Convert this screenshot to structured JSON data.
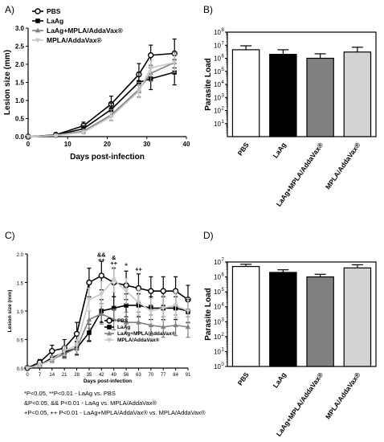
{
  "chart_data": [
    {
      "panel": "A)",
      "type": "line",
      "xlabel": "Days post-infection",
      "ylabel": "Lesion size (mm)",
      "xlim": [
        0,
        40
      ],
      "ylim": [
        0,
        3
      ],
      "xticks": [
        "0",
        "10",
        "20",
        "30",
        "40"
      ],
      "yticks": [
        "0.0",
        "0.5",
        "1.0",
        "1.5",
        "2.0",
        "2.5",
        "3.0"
      ],
      "legend_position": "top-left",
      "x": [
        0,
        7,
        14,
        21,
        28,
        31,
        37
      ],
      "series": [
        {
          "name": "PBS",
          "values": [
            0,
            0.05,
            0.3,
            0.9,
            1.72,
            2.25,
            2.3
          ],
          "err": [
            0,
            0.02,
            0.1,
            0.22,
            0.3,
            0.28,
            0.4
          ]
        },
        {
          "name": "LaAg",
          "values": [
            0,
            0.04,
            0.22,
            0.75,
            1.5,
            1.6,
            1.78
          ],
          "err": [
            0,
            0.02,
            0.08,
            0.18,
            0.28,
            0.3,
            0.35
          ]
        },
        {
          "name": "LaAg+MPLA/AddaVax®",
          "values": [
            0,
            0.04,
            0.15,
            0.6,
            1.3,
            1.75,
            2.05
          ],
          "err": [
            0,
            0.02,
            0.06,
            0.15,
            0.2,
            0.22,
            0.28
          ]
        },
        {
          "name": "MPLA/AddaVax®",
          "values": [
            0,
            0.03,
            0.12,
            0.55,
            1.25,
            1.9,
            2.05
          ],
          "err": [
            0,
            0.02,
            0.05,
            0.12,
            0.18,
            0.2,
            0.22
          ]
        }
      ]
    },
    {
      "panel": "B)",
      "type": "bar",
      "ylabel": "Parasite Load",
      "scale": "log",
      "ylim": [
        1,
        100000000
      ],
      "yticks": [
        "10",
        "1",
        "2",
        "3",
        "4",
        "5",
        "6",
        "7",
        "8"
      ],
      "categories": [
        "PBS",
        "LaAg",
        "LaAg+MPLA/AddaVax®",
        "MPLA/AddaVax®"
      ],
      "values": [
        4500000,
        2000000,
        1000000,
        3000000
      ],
      "err_upper": [
        9000000,
        4500000,
        2200000,
        7000000
      ],
      "colors": [
        "#ffffff",
        "#000000",
        "#808080",
        "#d3d3d3"
      ]
    },
    {
      "panel": "C)",
      "type": "line",
      "xlabel": "Days post-infection",
      "ylabel": "Lesion size (mm)",
      "xlim": [
        0,
        91
      ],
      "ylim": [
        0,
        2
      ],
      "xticks": [
        "0",
        "7",
        "14",
        "21",
        "28",
        "35",
        "42",
        "49",
        "56",
        "63",
        "70",
        "77",
        "84",
        "91"
      ],
      "yticks": [
        "0.0",
        "0.5",
        "1.0",
        "1.5",
        "2.0"
      ],
      "legend_position": "bottom-right",
      "x": [
        0,
        7,
        14,
        21,
        28,
        35,
        42,
        49,
        56,
        63,
        70,
        77,
        84,
        91
      ],
      "series": [
        {
          "name": "PBS",
          "values": [
            0,
            0.1,
            0.3,
            0.35,
            0.6,
            1.5,
            1.62,
            1.5,
            1.45,
            1.4,
            1.35,
            1.35,
            1.35,
            1.2
          ],
          "err": [
            0,
            0.05,
            0.1,
            0.15,
            0.2,
            0.25,
            0.25,
            0.25,
            0.25,
            0.25,
            0.25,
            0.25,
            0.25,
            0.25
          ]
        },
        {
          "name": "LaAg",
          "values": [
            0,
            0.05,
            0.18,
            0.28,
            0.35,
            0.62,
            1.0,
            1.05,
            1.1,
            1.1,
            1.05,
            1.05,
            1.05,
            1.0
          ],
          "err": [
            0,
            0.03,
            0.08,
            0.1,
            0.12,
            0.15,
            0.2,
            0.2,
            0.2,
            0.2,
            0.2,
            0.2,
            0.2,
            0.2
          ]
        },
        {
          "name": "LaAg+MPLA/AddaVax®",
          "values": [
            0,
            0.05,
            0.15,
            0.25,
            0.35,
            0.85,
            0.95,
            0.85,
            0.8,
            0.8,
            0.75,
            0.72,
            0.75,
            0.72
          ],
          "err": [
            0,
            0.03,
            0.06,
            0.08,
            0.1,
            0.15,
            0.18,
            0.18,
            0.18,
            0.18,
            0.18,
            0.18,
            0.18,
            0.18
          ]
        },
        {
          "name": "MPLA/AddaVax®",
          "values": [
            0,
            0.05,
            0.15,
            0.3,
            0.4,
            1.2,
            1.3,
            1.55,
            1.35,
            1.15,
            1.0,
            1.05,
            1.1,
            1.0
          ],
          "err": [
            0,
            0.03,
            0.06,
            0.08,
            0.1,
            0.2,
            0.22,
            0.22,
            0.22,
            0.22,
            0.22,
            0.22,
            0.22,
            0.22
          ]
        }
      ],
      "annotations": [
        {
          "text": "&&",
          "x": 42,
          "y": 1.95
        },
        {
          "text": "++",
          "x": 42,
          "y": 1.86
        },
        {
          "text": "&",
          "x": 49,
          "y": 1.9
        },
        {
          "text": "++",
          "x": 49,
          "y": 1.8
        },
        {
          "text": "+",
          "x": 56,
          "y": 1.78
        },
        {
          "text": "++",
          "x": 63,
          "y": 1.7
        },
        {
          "text": "**",
          "x": 35,
          "y": 0.42
        },
        {
          "text": "*",
          "x": 42,
          "y": 0.76
        }
      ]
    },
    {
      "panel": "D)",
      "type": "bar",
      "ylabel": "Parasite Load",
      "scale": "log",
      "ylim": [
        1,
        10000000
      ],
      "yticks": [
        "10",
        "0",
        "1",
        "2",
        "3",
        "4",
        "5",
        "6",
        "7"
      ],
      "categories": [
        "PBS",
        "LaAg",
        "LaAg+MPLA/AddaVax®",
        "MPLA/AddaVax®"
      ],
      "values": [
        5000000,
        2000000,
        1000000,
        4000000
      ],
      "err_upper": [
        7000000,
        3000000,
        1500000,
        6500000
      ],
      "colors": [
        "#ffffff",
        "#000000",
        "#808080",
        "#d3d3d3"
      ]
    }
  ],
  "footnotes": [
    "*P<0.05, **P<0.01 - LaAg vs. PBS",
    "&P<0.05, && P<0.01 - LaAg vs. MPLA/AddaVax®",
    "+P<0.05, ++ P<0.01 - LaAg+MPLA/AddaVax® vs. MPLA/AddaVax®"
  ]
}
